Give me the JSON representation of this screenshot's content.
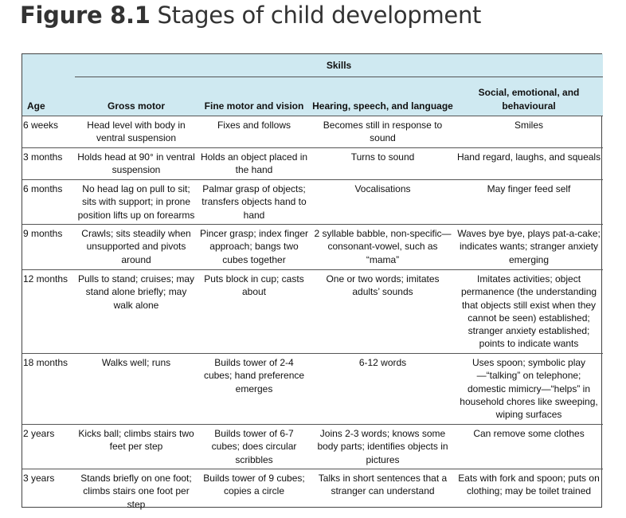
{
  "figure": {
    "label": "Figure 8.1",
    "title": "Stages of child development"
  },
  "table": {
    "group_header": "Skills",
    "columns": [
      "Age",
      "Gross motor",
      "Fine motor and vision",
      "Hearing, speech, and language",
      "Social, emotional, and behavioural"
    ],
    "rows": [
      {
        "age": "6 weeks",
        "gross_motor": "Head level with body in ventral suspension",
        "fine_motor": "Fixes and follows",
        "hearing": "Becomes still in response to sound",
        "social": "Smiles"
      },
      {
        "age": "3 months",
        "gross_motor": "Holds head at 90° in ventral suspension",
        "fine_motor": "Holds an object placed in the hand",
        "hearing": "Turns to sound",
        "social": "Hand regard, laughs, and squeals"
      },
      {
        "age": "6 months",
        "gross_motor": "No head lag on pull to sit; sits with support; in prone position lifts up on forearms",
        "fine_motor": "Palmar grasp of objects; transfers objects hand to hand",
        "hearing": "Vocalisations",
        "social": "May finger feed self"
      },
      {
        "age": "9 months",
        "gross_motor": "Crawls; sits steadily when unsupported and pivots around",
        "fine_motor": "Pincer grasp; index finger approach; bangs two cubes together",
        "hearing": "2 syllable babble, non-specific—consonant-vowel, such as “mama”",
        "social": "Waves bye bye, plays pat-a-cake; indicates wants; stranger anxiety emerging"
      },
      {
        "age": "12 months",
        "gross_motor": "Pulls to stand; cruises; may stand alone briefly; may walk alone",
        "fine_motor": "Puts block in cup; casts about",
        "hearing": "One or two words; imitates adults’ sounds",
        "social": "Imitates activities; object permanence (the understanding that objects still exist when they cannot be seen) established; stranger anxiety established; points to indicate wants"
      },
      {
        "age": "18 months",
        "gross_motor": "Walks well; runs",
        "fine_motor": "Builds tower of 2-4 cubes; hand preference emerges",
        "hearing": "6-12 words",
        "social": "Uses spoon; symbolic play—“talking” on telephone; domestic mimicry—“helps” in household chores like sweeping, wiping surfaces"
      },
      {
        "age": "2 years",
        "gross_motor": "Kicks ball; climbs stairs two feet per step",
        "fine_motor": "Builds tower of 6-7 cubes; does circular scribbles",
        "hearing": "Joins 2-3 words; knows some body parts; identifies objects in pictures",
        "social": "Can remove some clothes"
      },
      {
        "age": "3 years",
        "gross_motor": "Stands briefly on one foot; climbs stairs one foot per step",
        "fine_motor": "Builds tower of 9 cubes; copies a circle",
        "hearing": "Talks in short sentences that a stranger can understand",
        "social": "Eats with fork and spoon; puts on clothing; may be toilet trained"
      }
    ]
  }
}
